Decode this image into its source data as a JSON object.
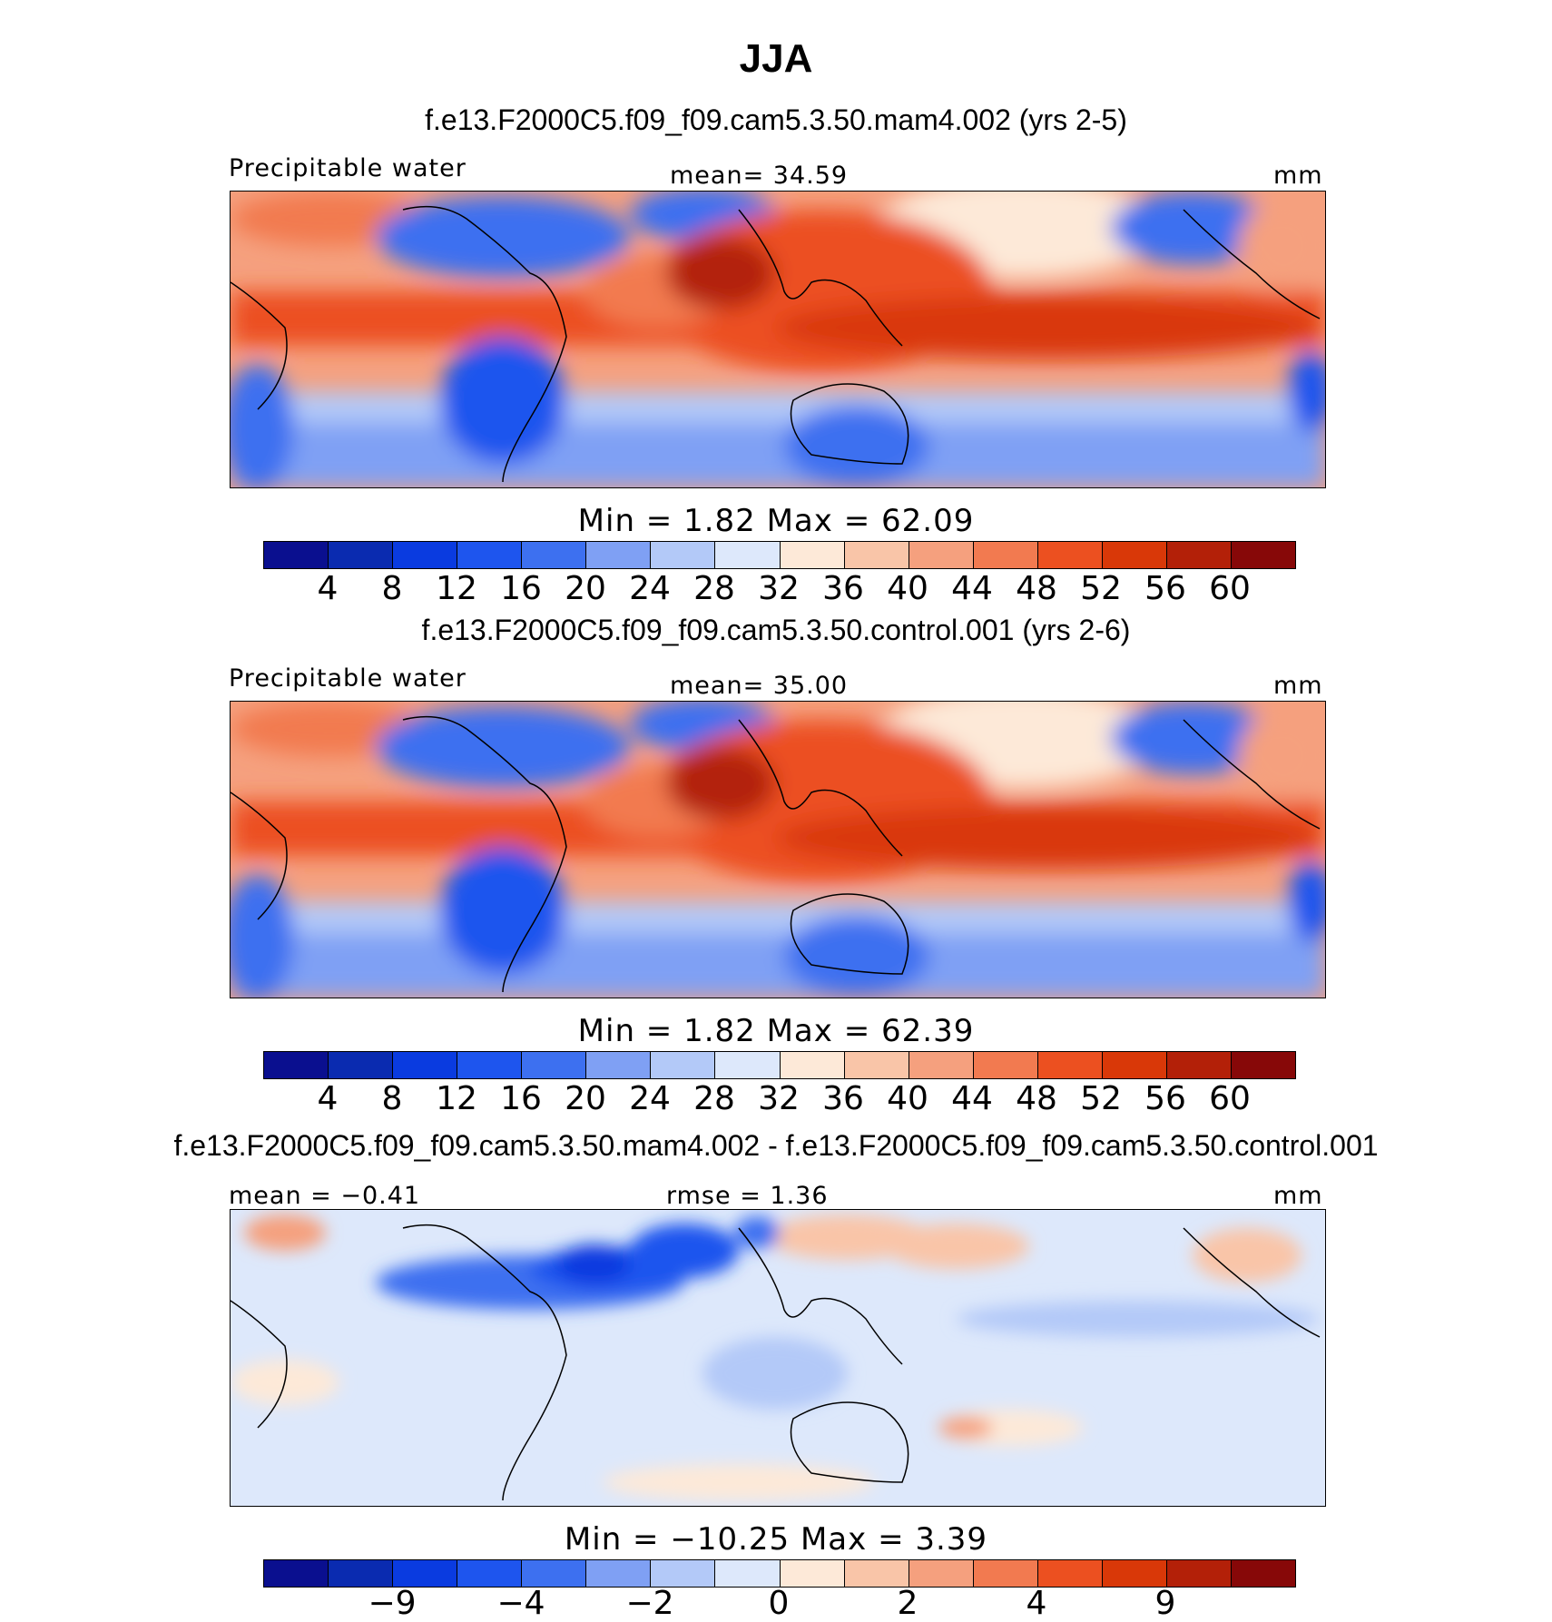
{
  "figure": {
    "title": "JJA",
    "colors": {
      "blue_to_red": [
        "#0a0f8f",
        "#0a2bb0",
        "#0a3be0",
        "#1e55ee",
        "#3d70f0",
        "#7fa0f4",
        "#b3c9f8",
        "#dde8fb",
        "#fde9d8",
        "#f9c5a8",
        "#f5a07e",
        "#f27a50",
        "#ec5020",
        "#d93808",
        "#b32008",
        "#870808"
      ]
    },
    "panels": [
      {
        "subtitle": "f.e13.F2000C5.f09_f09.cam5.3.50.mam4.002 (yrs 2-5)",
        "left_label": "Precipitable  water",
        "center_label": "mean=   34.59",
        "units": "mm",
        "minmax": "Min  =      1.82  Max  =    62.09",
        "ticks": [
          "4",
          "8",
          "12",
          "16",
          "20",
          "24",
          "28",
          "32",
          "36",
          "40",
          "44",
          "48",
          "52",
          "56",
          "60"
        ]
      },
      {
        "subtitle": "f.e13.F2000C5.f09_f09.cam5.3.50.control.001 (yrs 2-6)",
        "left_label": "Precipitable  water",
        "center_label": "mean=   35.00",
        "units": "mm",
        "minmax": "Min  =      1.82  Max  =    62.39",
        "ticks": [
          "4",
          "8",
          "12",
          "16",
          "20",
          "24",
          "28",
          "32",
          "36",
          "40",
          "44",
          "48",
          "52",
          "56",
          "60"
        ]
      },
      {
        "subtitle": "f.e13.F2000C5.f09_f09.cam5.3.50.mam4.002 - f.e13.F2000C5.f09_f09.cam5.3.50.control.001",
        "left_label": "mean  =   −0.41",
        "center_label": "rmse  =     1.36",
        "units": "mm",
        "minmax": "Min  =  −10.25  Max  =      3.39",
        "ticks": [
          "−9",
          "−4",
          "−2",
          "0",
          "2",
          "4",
          "9"
        ]
      }
    ]
  }
}
